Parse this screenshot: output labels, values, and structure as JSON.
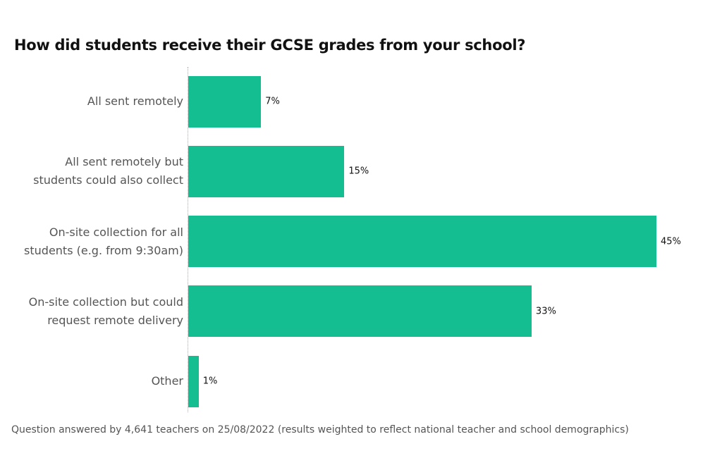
{
  "chart_data": {
    "type": "bar",
    "orientation": "horizontal",
    "title": "How did students receive their GCSE grades from your school?",
    "categories": [
      "All sent remotely",
      "All sent remotely but\nstudents could also collect",
      "On-site collection for all\nstudents (e.g. from 9:30am)",
      "On-site collection but could\nrequest remote delivery",
      "Other"
    ],
    "values": [
      7,
      15,
      45,
      33,
      1
    ],
    "value_labels": [
      "7%",
      "15%",
      "45%",
      "33%",
      "1%"
    ],
    "color": "#14be91",
    "footnote": "Question answered by 4,641 teachers on 25/08/2022 (results weighted to reflect national teacher and school demographics)"
  }
}
